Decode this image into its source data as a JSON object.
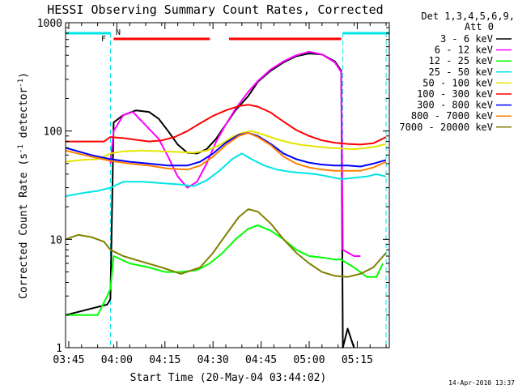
{
  "chart_data": {
    "type": "line",
    "title": "HESSI Observing Summary Count Rates, Corrected",
    "xlabel": "Start Time (20-May-04 03:44:02)",
    "ylabel_parts": [
      "Corrected Count Rate (s",
      "-1",
      " detector",
      "-1",
      ")"
    ],
    "y_scale": "log",
    "ylim": [
      1,
      1000
    ],
    "xlim_minutes_after_0344": [
      0,
      101
    ],
    "x_ticks": [
      {
        "label": "03:45",
        "minute": 1
      },
      {
        "label": "04:00",
        "minute": 16
      },
      {
        "label": "04:15",
        "minute": 31
      },
      {
        "label": "04:30",
        "minute": 46
      },
      {
        "label": "04:45",
        "minute": 61
      },
      {
        "label": "05:00",
        "minute": 76
      },
      {
        "label": "05:15",
        "minute": 91
      }
    ],
    "y_ticks": [
      {
        "label": "1",
        "value": 1
      },
      {
        "label": "10",
        "value": 10
      },
      {
        "label": "100",
        "value": 100
      },
      {
        "label": "1000",
        "value": 1000
      }
    ],
    "legend": {
      "header": [
        "Det 1,3,4,5,6,9,",
        "Att 0"
      ],
      "position": "right"
    },
    "markers": [
      {
        "label": "F",
        "color": "#ff0000"
      },
      {
        "label": "N",
        "color": "#00e5e5"
      }
    ],
    "attenuator_bars": [
      [
        15,
        45
      ],
      [
        51,
        86
      ]
    ],
    "night_intervals": [
      [
        0,
        14
      ],
      [
        86.5,
        101
      ]
    ],
    "boundary_lines": [
      0,
      14,
      86.5,
      100
    ],
    "series": [
      {
        "name": "3 - 6 keV",
        "color": "#000000",
        "points": [
          [
            0,
            2
          ],
          [
            13,
            2.5
          ],
          [
            14,
            2.8
          ],
          [
            15,
            120
          ],
          [
            18,
            140
          ],
          [
            22,
            155
          ],
          [
            26,
            150
          ],
          [
            29,
            130
          ],
          [
            32,
            100
          ],
          [
            35,
            75
          ],
          [
            38,
            63
          ],
          [
            41,
            62
          ],
          [
            44,
            68
          ],
          [
            47,
            85
          ],
          [
            50,
            115
          ],
          [
            53,
            155
          ],
          [
            57,
            210
          ],
          [
            60,
            285
          ],
          [
            64,
            360
          ],
          [
            68,
            430
          ],
          [
            72,
            490
          ],
          [
            76,
            520
          ],
          [
            80,
            510
          ],
          [
            84,
            440
          ],
          [
            86,
            360
          ],
          [
            86.5,
            1
          ],
          [
            88,
            1.5
          ],
          [
            90,
            1
          ]
        ]
      },
      {
        "name": "6 - 12 keV",
        "color": "#ff00ff",
        "points": [
          [
            14,
            50
          ],
          [
            15,
            100
          ],
          [
            18,
            140
          ],
          [
            21,
            150
          ],
          [
            23,
            130
          ],
          [
            26,
            105
          ],
          [
            29,
            85
          ],
          [
            32,
            58
          ],
          [
            35,
            38
          ],
          [
            38,
            30
          ],
          [
            41,
            34
          ],
          [
            44,
            50
          ],
          [
            47,
            80
          ],
          [
            50,
            115
          ],
          [
            53,
            160
          ],
          [
            57,
            230
          ],
          [
            60,
            290
          ],
          [
            64,
            370
          ],
          [
            68,
            440
          ],
          [
            72,
            500
          ],
          [
            76,
            540
          ],
          [
            80,
            510
          ],
          [
            84,
            430
          ],
          [
            86,
            350
          ],
          [
            86.5,
            8
          ],
          [
            90,
            7
          ],
          [
            92,
            7
          ]
        ]
      },
      {
        "name": "12 - 25 keV",
        "color": "#00ff00",
        "points": [
          [
            0,
            2
          ],
          [
            10,
            2
          ],
          [
            13,
            3
          ],
          [
            14,
            3.5
          ],
          [
            15,
            7
          ],
          [
            20,
            6
          ],
          [
            26,
            5.5
          ],
          [
            31,
            5
          ],
          [
            36,
            5
          ],
          [
            41,
            5.2
          ],
          [
            45,
            6
          ],
          [
            49,
            7.5
          ],
          [
            53,
            10
          ],
          [
            57,
            12.5
          ],
          [
            60,
            13.5
          ],
          [
            64,
            12
          ],
          [
            68,
            10
          ],
          [
            72,
            8
          ],
          [
            76,
            7
          ],
          [
            80,
            6.8
          ],
          [
            84,
            6.5
          ],
          [
            86,
            6.5
          ],
          [
            90,
            5.5
          ],
          [
            94,
            4.5
          ],
          [
            97,
            4.5
          ],
          [
            99,
            6
          ]
        ]
      },
      {
        "name": "25 - 50 keV",
        "color": "#00e5e5",
        "points": [
          [
            0,
            25
          ],
          [
            6,
            27
          ],
          [
            10,
            28
          ],
          [
            14,
            30
          ],
          [
            18,
            34
          ],
          [
            24,
            34
          ],
          [
            30,
            33
          ],
          [
            36,
            32
          ],
          [
            40,
            31
          ],
          [
            44,
            35
          ],
          [
            48,
            43
          ],
          [
            52,
            55
          ],
          [
            55,
            62
          ],
          [
            58,
            55
          ],
          [
            62,
            48
          ],
          [
            66,
            44
          ],
          [
            70,
            42
          ],
          [
            74,
            41
          ],
          [
            78,
            40
          ],
          [
            82,
            38
          ],
          [
            86,
            36
          ],
          [
            90,
            37
          ],
          [
            94,
            38
          ],
          [
            97,
            40
          ],
          [
            100,
            38
          ]
        ]
      },
      {
        "name": "50 - 100 keV",
        "color": "#e5e500",
        "points": [
          [
            0,
            52
          ],
          [
            5,
            54
          ],
          [
            10,
            55
          ],
          [
            14,
            62
          ],
          [
            18,
            65
          ],
          [
            24,
            66
          ],
          [
            30,
            65
          ],
          [
            36,
            64
          ],
          [
            40,
            63
          ],
          [
            44,
            66
          ],
          [
            48,
            74
          ],
          [
            52,
            88
          ],
          [
            55,
            96
          ],
          [
            58,
            100
          ],
          [
            62,
            92
          ],
          [
            66,
            84
          ],
          [
            70,
            78
          ],
          [
            74,
            74
          ],
          [
            78,
            72
          ],
          [
            82,
            70
          ],
          [
            86,
            69
          ],
          [
            90,
            68
          ],
          [
            94,
            70
          ],
          [
            97,
            72
          ],
          [
            100,
            76
          ]
        ]
      },
      {
        "name": "100 - 300 keV",
        "color": "#ff0000",
        "points": [
          [
            0,
            80
          ],
          [
            5,
            80
          ],
          [
            10,
            80
          ],
          [
            12,
            80
          ],
          [
            14,
            88
          ],
          [
            18,
            86
          ],
          [
            22,
            83
          ],
          [
            26,
            80
          ],
          [
            30,
            82
          ],
          [
            34,
            88
          ],
          [
            38,
            100
          ],
          [
            42,
            118
          ],
          [
            46,
            138
          ],
          [
            50,
            155
          ],
          [
            54,
            170
          ],
          [
            57,
            175
          ],
          [
            60,
            168
          ],
          [
            64,
            148
          ],
          [
            68,
            122
          ],
          [
            72,
            102
          ],
          [
            76,
            90
          ],
          [
            80,
            82
          ],
          [
            84,
            78
          ],
          [
            88,
            76
          ],
          [
            92,
            75
          ],
          [
            96,
            77
          ],
          [
            100,
            88
          ]
        ]
      },
      {
        "name": "300 - 800 keV",
        "color": "#0000ff",
        "points": [
          [
            0,
            70
          ],
          [
            8,
            60
          ],
          [
            14,
            55
          ],
          [
            20,
            52
          ],
          [
            26,
            50
          ],
          [
            32,
            48
          ],
          [
            38,
            48
          ],
          [
            42,
            52
          ],
          [
            46,
            62
          ],
          [
            50,
            78
          ],
          [
            54,
            92
          ],
          [
            57,
            96
          ],
          [
            60,
            90
          ],
          [
            64,
            76
          ],
          [
            68,
            62
          ],
          [
            72,
            55
          ],
          [
            76,
            51
          ],
          [
            80,
            49
          ],
          [
            84,
            48
          ],
          [
            88,
            48
          ],
          [
            92,
            47
          ],
          [
            96,
            50
          ],
          [
            100,
            54
          ]
        ]
      },
      {
        "name": "800 - 7000 keV",
        "color": "#ff8000",
        "points": [
          [
            0,
            66
          ],
          [
            8,
            58
          ],
          [
            14,
            53
          ],
          [
            20,
            50
          ],
          [
            26,
            48
          ],
          [
            32,
            45
          ],
          [
            38,
            44
          ],
          [
            42,
            48
          ],
          [
            46,
            58
          ],
          [
            50,
            74
          ],
          [
            54,
            90
          ],
          [
            57,
            96
          ],
          [
            60,
            88
          ],
          [
            64,
            74
          ],
          [
            68,
            58
          ],
          [
            72,
            50
          ],
          [
            76,
            46
          ],
          [
            80,
            44
          ],
          [
            84,
            43
          ],
          [
            88,
            43
          ],
          [
            92,
            43
          ],
          [
            96,
            46
          ],
          [
            100,
            52
          ]
        ]
      },
      {
        "name": "7000 - 20000 keV",
        "color": "#808000",
        "points": [
          [
            0,
            10
          ],
          [
            4,
            11
          ],
          [
            8,
            10.5
          ],
          [
            12,
            9.5
          ],
          [
            14,
            8
          ],
          [
            18,
            7
          ],
          [
            24,
            6.2
          ],
          [
            30,
            5.5
          ],
          [
            36,
            4.8
          ],
          [
            42,
            5.5
          ],
          [
            46,
            7.5
          ],
          [
            50,
            11
          ],
          [
            54,
            16
          ],
          [
            57,
            19
          ],
          [
            60,
            18
          ],
          [
            64,
            14
          ],
          [
            68,
            10
          ],
          [
            72,
            7.5
          ],
          [
            76,
            6
          ],
          [
            80,
            5
          ],
          [
            84,
            4.6
          ],
          [
            88,
            4.5
          ],
          [
            92,
            4.8
          ],
          [
            96,
            5.5
          ],
          [
            100,
            7.5
          ]
        ]
      }
    ]
  },
  "footer_date": "14-Apr-2010 13:37"
}
